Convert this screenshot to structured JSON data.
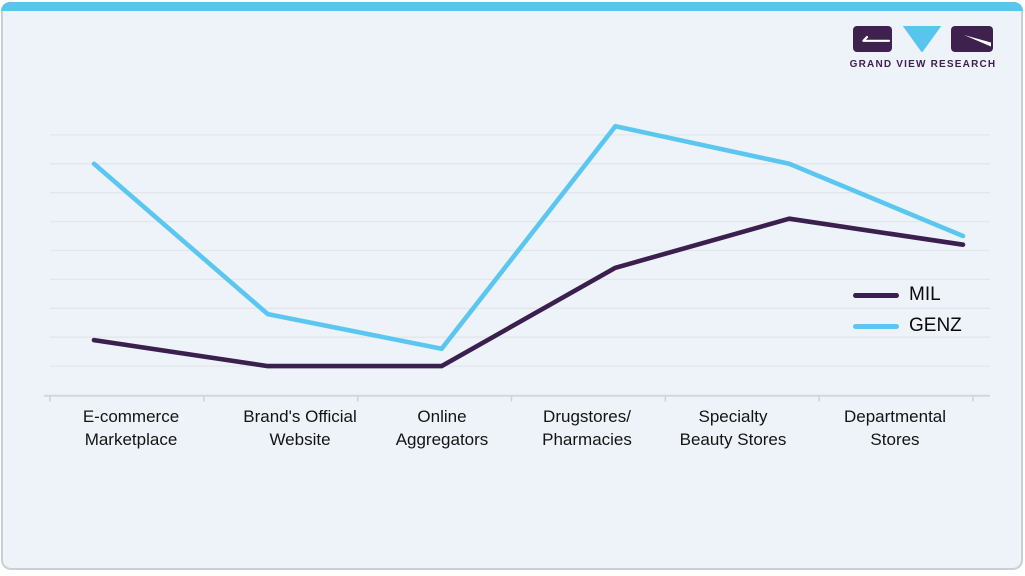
{
  "logo": {
    "brand_text": "GRAND VIEW RESEARCH",
    "block_color": "#3F2150",
    "triangle_color": "#58C5EF"
  },
  "legend": {
    "items": [
      {
        "label": "MIL",
        "color": "#3A1F4F"
      },
      {
        "label": "GENZ",
        "color": "#5BC7F0"
      }
    ]
  },
  "chart_data": {
    "type": "line",
    "title": "",
    "xlabel": "",
    "ylabel": "",
    "categories": [
      [
        "E-commerce",
        "Marketplace"
      ],
      [
        "Brand's Official",
        "Website"
      ],
      [
        "Online",
        "Aggregators"
      ],
      [
        "Drugstores/",
        "Pharmacies"
      ],
      [
        "Specialty",
        "Beauty Stores"
      ],
      [
        "Departmental",
        "Stores"
      ]
    ],
    "series": [
      {
        "name": "MIL",
        "color": "#3A1F4F",
        "values": [
          19,
          10,
          10,
          44,
          61,
          52
        ]
      },
      {
        "name": "GENZ",
        "color": "#5BC7F0",
        "values": [
          80,
          28,
          16,
          93,
          80,
          55
        ]
      }
    ],
    "ylim": [
      0,
      100
    ],
    "grid": true,
    "gridline_values": [
      10,
      20,
      30,
      40,
      50,
      60,
      70,
      80,
      90
    ],
    "y_tick_labels_shown": false,
    "legend_position": "right-middle"
  },
  "colors": {
    "card_background": "#EDF3F8",
    "top_bar": "#5BC4EE",
    "card_border": "#CBD0D5",
    "gridline": "#E3E7EA",
    "axis": "#D3D8DC",
    "tick": "#CDD2D6",
    "label_text": "#141414"
  }
}
